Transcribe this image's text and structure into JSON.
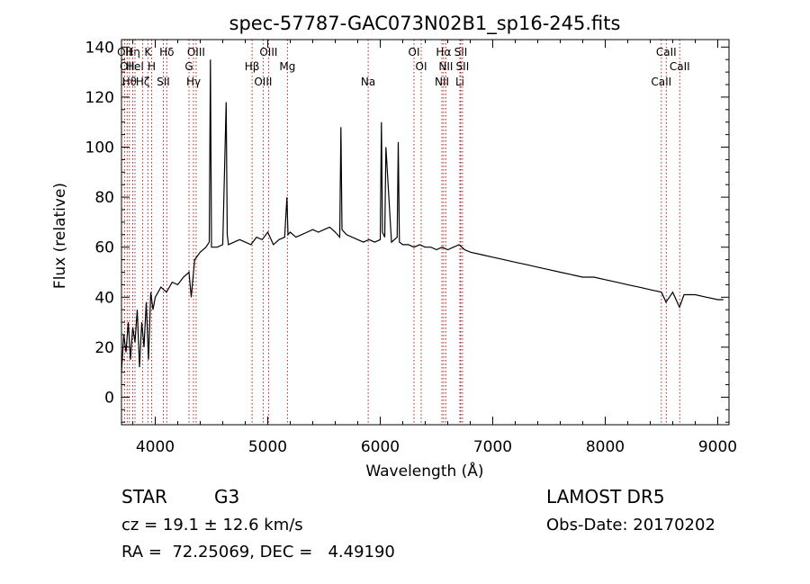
{
  "chart_data": {
    "type": "line",
    "title": "spec-57787-GAC073N02B1_sp16-245.fits",
    "xlabel": "Wavelength (Å)",
    "ylabel": "Flux (relative)",
    "xlim": [
      3700,
      9100
    ],
    "ylim": [
      -11,
      143
    ],
    "xticks": [
      4000,
      5000,
      6000,
      7000,
      8000,
      9000
    ],
    "yticks": [
      0,
      20,
      40,
      60,
      80,
      100,
      120,
      140
    ],
    "grid": false,
    "series": [
      {
        "x": [
          3700,
          3720,
          3740,
          3760,
          3780,
          3800,
          3820,
          3840,
          3860,
          3880,
          3900,
          3920,
          3940,
          3960,
          3980,
          4000,
          4050,
          4100,
          4150,
          4200,
          4250,
          4300,
          4320,
          4350,
          4400,
          4450,
          4480,
          4490,
          4500,
          4550,
          4600,
          4630,
          4640,
          4650,
          4700,
          4750,
          4800,
          4850,
          4900,
          4950,
          5000,
          5050,
          5100,
          5150,
          5170,
          5180,
          5200,
          5250,
          5300,
          5350,
          5400,
          5450,
          5500,
          5550,
          5600,
          5640,
          5650,
          5660,
          5700,
          5750,
          5800,
          5850,
          5900,
          5950,
          6000,
          6010,
          6020,
          6040,
          6050,
          6100,
          6150,
          6160,
          6170,
          6200,
          6250,
          6300,
          6350,
          6400,
          6450,
          6500,
          6550,
          6600,
          6650,
          6700,
          6750,
          6800,
          6900,
          7000,
          7100,
          7200,
          7300,
          7400,
          7500,
          7600,
          7700,
          7800,
          7900,
          8000,
          8100,
          8200,
          8300,
          8400,
          8500,
          8540,
          8600,
          8660,
          8700,
          8800,
          8900,
          9000,
          9050
        ],
        "values": [
          10,
          25,
          18,
          30,
          15,
          28,
          22,
          35,
          12,
          30,
          20,
          38,
          15,
          42,
          35,
          40,
          44,
          42,
          46,
          45,
          48,
          50,
          40,
          55,
          58,
          60,
          62,
          135,
          60,
          60,
          61,
          118,
          65,
          61,
          62,
          63,
          62,
          61,
          64,
          63,
          66,
          61,
          63,
          64,
          80,
          65,
          66,
          64,
          65,
          66,
          67,
          66,
          67,
          68,
          66,
          64,
          108,
          67,
          65,
          64,
          63,
          62,
          63,
          62,
          63,
          110,
          66,
          64,
          100,
          62,
          64,
          102,
          62,
          61,
          61,
          60,
          61,
          60,
          60,
          59,
          60,
          59,
          60,
          61,
          59,
          58,
          57,
          56,
          55,
          54,
          53,
          52,
          51,
          50,
          49,
          48,
          48,
          47,
          46,
          45,
          44,
          43,
          42,
          38,
          42,
          36,
          41,
          41,
          40,
          39,
          39
        ]
      }
    ],
    "line_markers": [
      {
        "wavelength": 3727,
        "label": "OII"
      },
      {
        "wavelength": 3750,
        "label": "OII"
      },
      {
        "wavelength": 3770,
        "label": "Hθ"
      },
      {
        "wavelength": 3800,
        "label": "Hη"
      },
      {
        "wavelength": 3820,
        "label": "HeI"
      },
      {
        "wavelength": 3889,
        "label": "Hζ"
      },
      {
        "wavelength": 3934,
        "label": "K"
      },
      {
        "wavelength": 3968,
        "label": "H"
      },
      {
        "wavelength": 4072,
        "label": "SII"
      },
      {
        "wavelength": 4102,
        "label": "Hδ"
      },
      {
        "wavelength": 4300,
        "label": "G"
      },
      {
        "wavelength": 4340,
        "label": "Hγ"
      },
      {
        "wavelength": 4363,
        "label": "OIII"
      },
      {
        "wavelength": 4861,
        "label": "Hβ"
      },
      {
        "wavelength": 4959,
        "label": "OIII"
      },
      {
        "wavelength": 5007,
        "label": "OIII"
      },
      {
        "wavelength": 5175,
        "label": "Mg"
      },
      {
        "wavelength": 5893,
        "label": "Na"
      },
      {
        "wavelength": 6300,
        "label": "OI"
      },
      {
        "wavelength": 6364,
        "label": "OI"
      },
      {
        "wavelength": 6548,
        "label": "NII"
      },
      {
        "wavelength": 6563,
        "label": "Hα"
      },
      {
        "wavelength": 6583,
        "label": "NII"
      },
      {
        "wavelength": 6708,
        "label": "Li"
      },
      {
        "wavelength": 6716,
        "label": "SII"
      },
      {
        "wavelength": 6731,
        "label": "SII"
      },
      {
        "wavelength": 8498,
        "label": "CaII"
      },
      {
        "wavelength": 8542,
        "label": "CaII"
      },
      {
        "wavelength": 8662,
        "label": "CaII"
      }
    ]
  },
  "info": {
    "object_class": "STAR",
    "subclass": "G3",
    "cz": "cz = 19.1 ± 12.6 km/s",
    "coords": "RA =  72.25069, DEC =   4.49190",
    "survey": "LAMOST DR5",
    "obs_date": "Obs-Date: 20170202"
  },
  "colors": {
    "spectrum": "#000000",
    "marker": "#b22222",
    "axis": "#000000"
  }
}
